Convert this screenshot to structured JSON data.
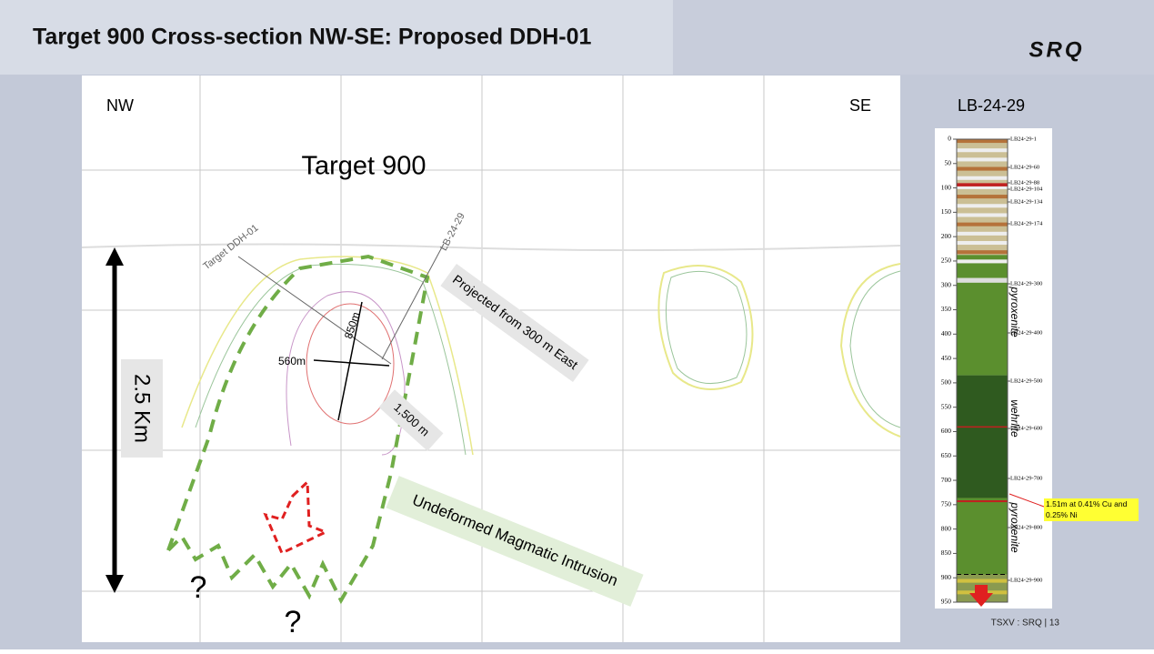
{
  "header": {
    "title": "Target 900 Cross-section NW-SE: Proposed DDH-01",
    "logo": "SRQ"
  },
  "section": {
    "left_label": "NW",
    "right_label": "SE",
    "target_label": "Target 900",
    "scale_label": "2.5 Km",
    "projected_note": "Projected from 300 m East",
    "intrusion_note": "Undeformed Magmatic Intrusion",
    "dim_vertical": "850m",
    "dim_horizontal": "560m",
    "dim_length": "1,500 m",
    "hole_proposed": "Target DDH-01",
    "hole_existing": "LB-24-29",
    "unknown_marks": [
      "?",
      "?"
    ]
  },
  "log": {
    "title": "LB-24-29",
    "depth_ticks": [
      0,
      50,
      100,
      150,
      200,
      250,
      300,
      350,
      400,
      450,
      500,
      550,
      600,
      650,
      700,
      750,
      800,
      850,
      900,
      950
    ],
    "samples": [
      "LB24-29-1",
      "LB24-29-60",
      "LB24-29-88",
      "LB24-29-104",
      "LB24-29-134",
      "LB24-29-174",
      "LB24-29-300",
      "LB24-29-400",
      "LB24-29-500",
      "LB24-29-600",
      "LB24-29-700",
      "LB24-29-800",
      "LB24-29-900"
    ],
    "units": [
      "pyroxenite",
      "wehrlite",
      "pyroxenite"
    ],
    "intercept": "1.51m at 0.41% Cu and 0.25% Ni"
  },
  "footer": {
    "text": "TSXV : SRQ  |  13"
  }
}
